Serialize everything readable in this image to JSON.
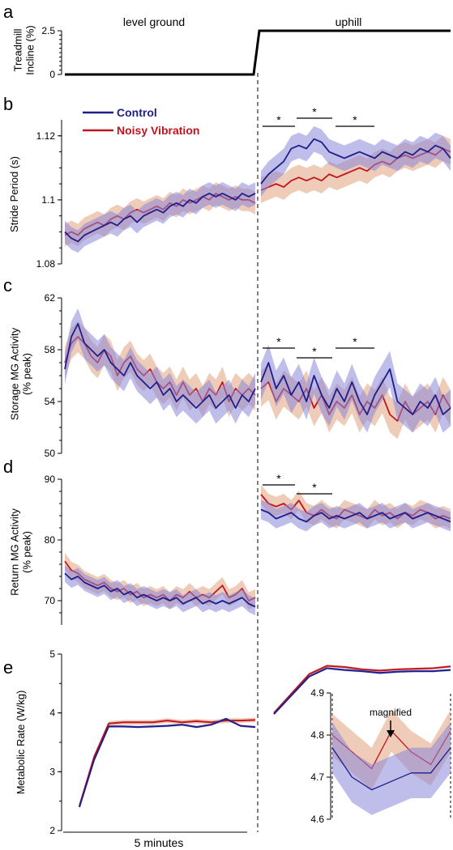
{
  "section_labels": {
    "left": "level ground",
    "right": "uphill"
  },
  "x_axis_label": "5 minutes",
  "legend": [
    {
      "name": "Control",
      "color": "#1e1e8c"
    },
    {
      "name": "Noisy Vibration",
      "color": "#c0141e"
    }
  ],
  "colors": {
    "control": "#1e1e8c",
    "control_band": "#8b86d8",
    "noisy": "#c0141e",
    "noisy_band": "#e2a27e"
  },
  "chart_data": [
    {
      "panel": "a",
      "type": "line",
      "ylabel": [
        "Treadmill",
        "Incline (%)"
      ],
      "yticks": [
        "0",
        "2.5"
      ],
      "ylim": [
        0,
        2.5
      ],
      "series": [
        {
          "values_level": [
            0,
            0
          ],
          "values_uphill": [
            2.5,
            2.5
          ]
        }
      ]
    },
    {
      "panel": "b",
      "type": "line",
      "ylabel": [
        "Stride Period (s)"
      ],
      "yticks": [
        "1.08",
        "1.1",
        "1.12"
      ],
      "ylim": [
        1.08,
        1.125
      ],
      "significance": [
        "*",
        "*",
        "*"
      ],
      "series": [
        {
          "name": "Control",
          "level": [
            1.09,
            1.088,
            1.087,
            1.089,
            1.09,
            1.091,
            1.092,
            1.093,
            1.092,
            1.094,
            1.095,
            1.093,
            1.095,
            1.096,
            1.097,
            1.096,
            1.098,
            1.099,
            1.098,
            1.1,
            1.099,
            1.101,
            1.102,
            1.101,
            1.102,
            1.101,
            1.1,
            1.102,
            1.101,
            1.102
          ],
          "uphill": [
            1.105,
            1.108,
            1.11,
            1.112,
            1.116,
            1.117,
            1.116,
            1.119,
            1.118,
            1.115,
            1.114,
            1.113,
            1.114,
            1.115,
            1.114,
            1.113,
            1.115,
            1.114,
            1.113,
            1.115,
            1.114,
            1.116,
            1.115,
            1.117,
            1.116,
            1.113
          ]
        },
        {
          "name": "Noisy Vibration",
          "level": [
            1.089,
            1.09,
            1.089,
            1.091,
            1.092,
            1.093,
            1.092,
            1.094,
            1.095,
            1.094,
            1.096,
            1.097,
            1.096,
            1.097,
            1.098,
            1.097,
            1.099,
            1.098,
            1.1,
            1.099,
            1.1,
            1.101,
            1.1,
            1.102,
            1.101,
            1.1,
            1.101,
            1.1,
            1.1,
            1.099
          ],
          "uphill": [
            1.103,
            1.104,
            1.105,
            1.104,
            1.106,
            1.107,
            1.106,
            1.107,
            1.106,
            1.108,
            1.107,
            1.108,
            1.109,
            1.11,
            1.109,
            1.111,
            1.112,
            1.111,
            1.113,
            1.114,
            1.113,
            1.114,
            1.115,
            1.114,
            1.116,
            1.115
          ]
        }
      ]
    },
    {
      "panel": "c",
      "type": "line",
      "ylabel": [
        "Storage MG Activity",
        "(% peak)"
      ],
      "yticks": [
        "50",
        "54",
        "58",
        "62"
      ],
      "ylim": [
        50,
        62
      ],
      "significance": [
        "*",
        "*",
        "*"
      ],
      "series": [
        {
          "name": "Control",
          "level": [
            56.5,
            59.0,
            60.0,
            58.5,
            58.0,
            57.5,
            58.0,
            57.0,
            56.5,
            56.0,
            57.0,
            56.0,
            55.5,
            55.0,
            55.5,
            54.5,
            55.0,
            54.0,
            54.5,
            54.0,
            53.5,
            54.0,
            54.5,
            53.5,
            54.0,
            54.5,
            53.5,
            54.5,
            54.0,
            55.0
          ],
          "uphill": [
            55.5,
            57.0,
            55.0,
            56.0,
            54.5,
            55.5,
            54.0,
            56.0,
            54.5,
            53.5,
            55.0,
            54.0,
            55.5,
            54.0,
            53.0,
            54.5,
            55.5,
            56.5,
            54.0,
            53.5,
            53.0,
            54.0,
            53.5,
            54.5,
            53.0,
            53.5
          ]
        },
        {
          "name": "Noisy Vibration",
          "level": [
            57.0,
            58.5,
            59.0,
            58.5,
            57.5,
            57.0,
            58.0,
            57.5,
            56.0,
            57.0,
            57.5,
            56.5,
            56.0,
            56.5,
            55.5,
            55.0,
            55.5,
            54.5,
            55.5,
            54.5,
            55.0,
            54.0,
            55.0,
            54.5,
            55.5,
            54.0,
            55.0,
            54.5,
            55.0,
            54.5
          ],
          "uphill": [
            55.0,
            55.5,
            54.0,
            55.0,
            54.5,
            54.0,
            55.0,
            53.5,
            54.5,
            53.0,
            54.0,
            53.5,
            54.5,
            53.0,
            54.0,
            53.5,
            54.5,
            53.0,
            52.5,
            54.0,
            53.0,
            53.5,
            54.0,
            53.0,
            54.5,
            53.5
          ]
        }
      ]
    },
    {
      "panel": "d",
      "type": "line",
      "ylabel": [
        "Return MG Activity",
        "(% peak)"
      ],
      "yticks": [
        "70",
        "80",
        "90"
      ],
      "ylim": [
        66,
        90
      ],
      "significance": [
        "*",
        "*"
      ],
      "series": [
        {
          "name": "Control",
          "level": [
            74.5,
            73.5,
            74.0,
            73.0,
            72.5,
            72.0,
            72.5,
            71.5,
            72.0,
            71.0,
            71.5,
            70.5,
            71.0,
            70.5,
            70.0,
            70.5,
            70.0,
            70.5,
            69.5,
            70.0,
            70.5,
            69.5,
            70.0,
            69.5,
            70.0,
            69.5,
            70.0,
            70.5,
            69.5,
            69.0
          ],
          "uphill": [
            85.0,
            84.5,
            83.5,
            84.0,
            84.5,
            83.5,
            83.0,
            84.0,
            84.5,
            83.5,
            84.0,
            83.5,
            84.0,
            84.5,
            83.5,
            84.0,
            84.5,
            83.5,
            84.0,
            84.5,
            83.5,
            84.0,
            84.5,
            84.0,
            83.5,
            83.0
          ]
        },
        {
          "name": "Noisy Vibration",
          "level": [
            76.5,
            75.0,
            74.5,
            73.5,
            73.0,
            72.5,
            73.0,
            72.0,
            71.5,
            72.0,
            71.0,
            71.5,
            70.5,
            71.0,
            70.5,
            71.0,
            70.0,
            71.0,
            70.5,
            71.5,
            70.5,
            71.0,
            70.5,
            71.5,
            72.5,
            70.5,
            71.0,
            72.0,
            70.0,
            70.5
          ],
          "uphill": [
            87.5,
            86.0,
            85.5,
            86.0,
            85.0,
            86.5,
            84.5,
            84.0,
            85.0,
            84.0,
            83.5,
            85.0,
            84.5,
            84.0,
            83.5,
            85.0,
            84.0,
            84.5,
            83.5,
            84.5,
            84.0,
            85.0,
            84.5,
            83.5,
            84.0,
            83.5
          ]
        }
      ]
    },
    {
      "panel": "e",
      "type": "line",
      "ylabel": [
        "Metabolic Rate (W/kg)"
      ],
      "yticks": [
        "2",
        "3",
        "4",
        "5"
      ],
      "ylim": [
        2,
        5
      ],
      "series": [
        {
          "name": "Control",
          "level": [
            2.4,
            3.2,
            3.77,
            3.77,
            3.76,
            3.77,
            3.78,
            3.8,
            3.76,
            3.8,
            3.9,
            3.78,
            3.76
          ],
          "uphill": [
            3.98,
            4.3,
            4.62,
            4.76,
            4.73,
            4.71,
            4.68,
            4.7,
            4.71,
            4.71,
            4.73
          ]
        },
        {
          "name": "Noisy Vibration",
          "level": [
            2.42,
            3.25,
            3.82,
            3.84,
            3.84,
            3.84,
            3.87,
            3.84,
            3.86,
            3.84,
            3.87,
            3.87,
            3.88
          ],
          "uphill": [
            4.0,
            4.33,
            4.66,
            4.8,
            4.78,
            4.74,
            4.72,
            4.74,
            4.75,
            4.76,
            4.79
          ]
        }
      ],
      "inset": {
        "annotation": "magnified",
        "yticks": [
          "4.6",
          "4.7",
          "4.8",
          "4.9"
        ],
        "ylim": [
          4.6,
          4.9
        ],
        "series": [
          {
            "name": "Control",
            "values": [
              4.77,
              4.7,
              4.67,
              4.69,
              4.71,
              4.71,
              4.77
            ]
          },
          {
            "name": "Noisy Vibration",
            "values": [
              4.8,
              4.76,
              4.72,
              4.81,
              4.76,
              4.73,
              4.81
            ]
          }
        ]
      }
    }
  ]
}
